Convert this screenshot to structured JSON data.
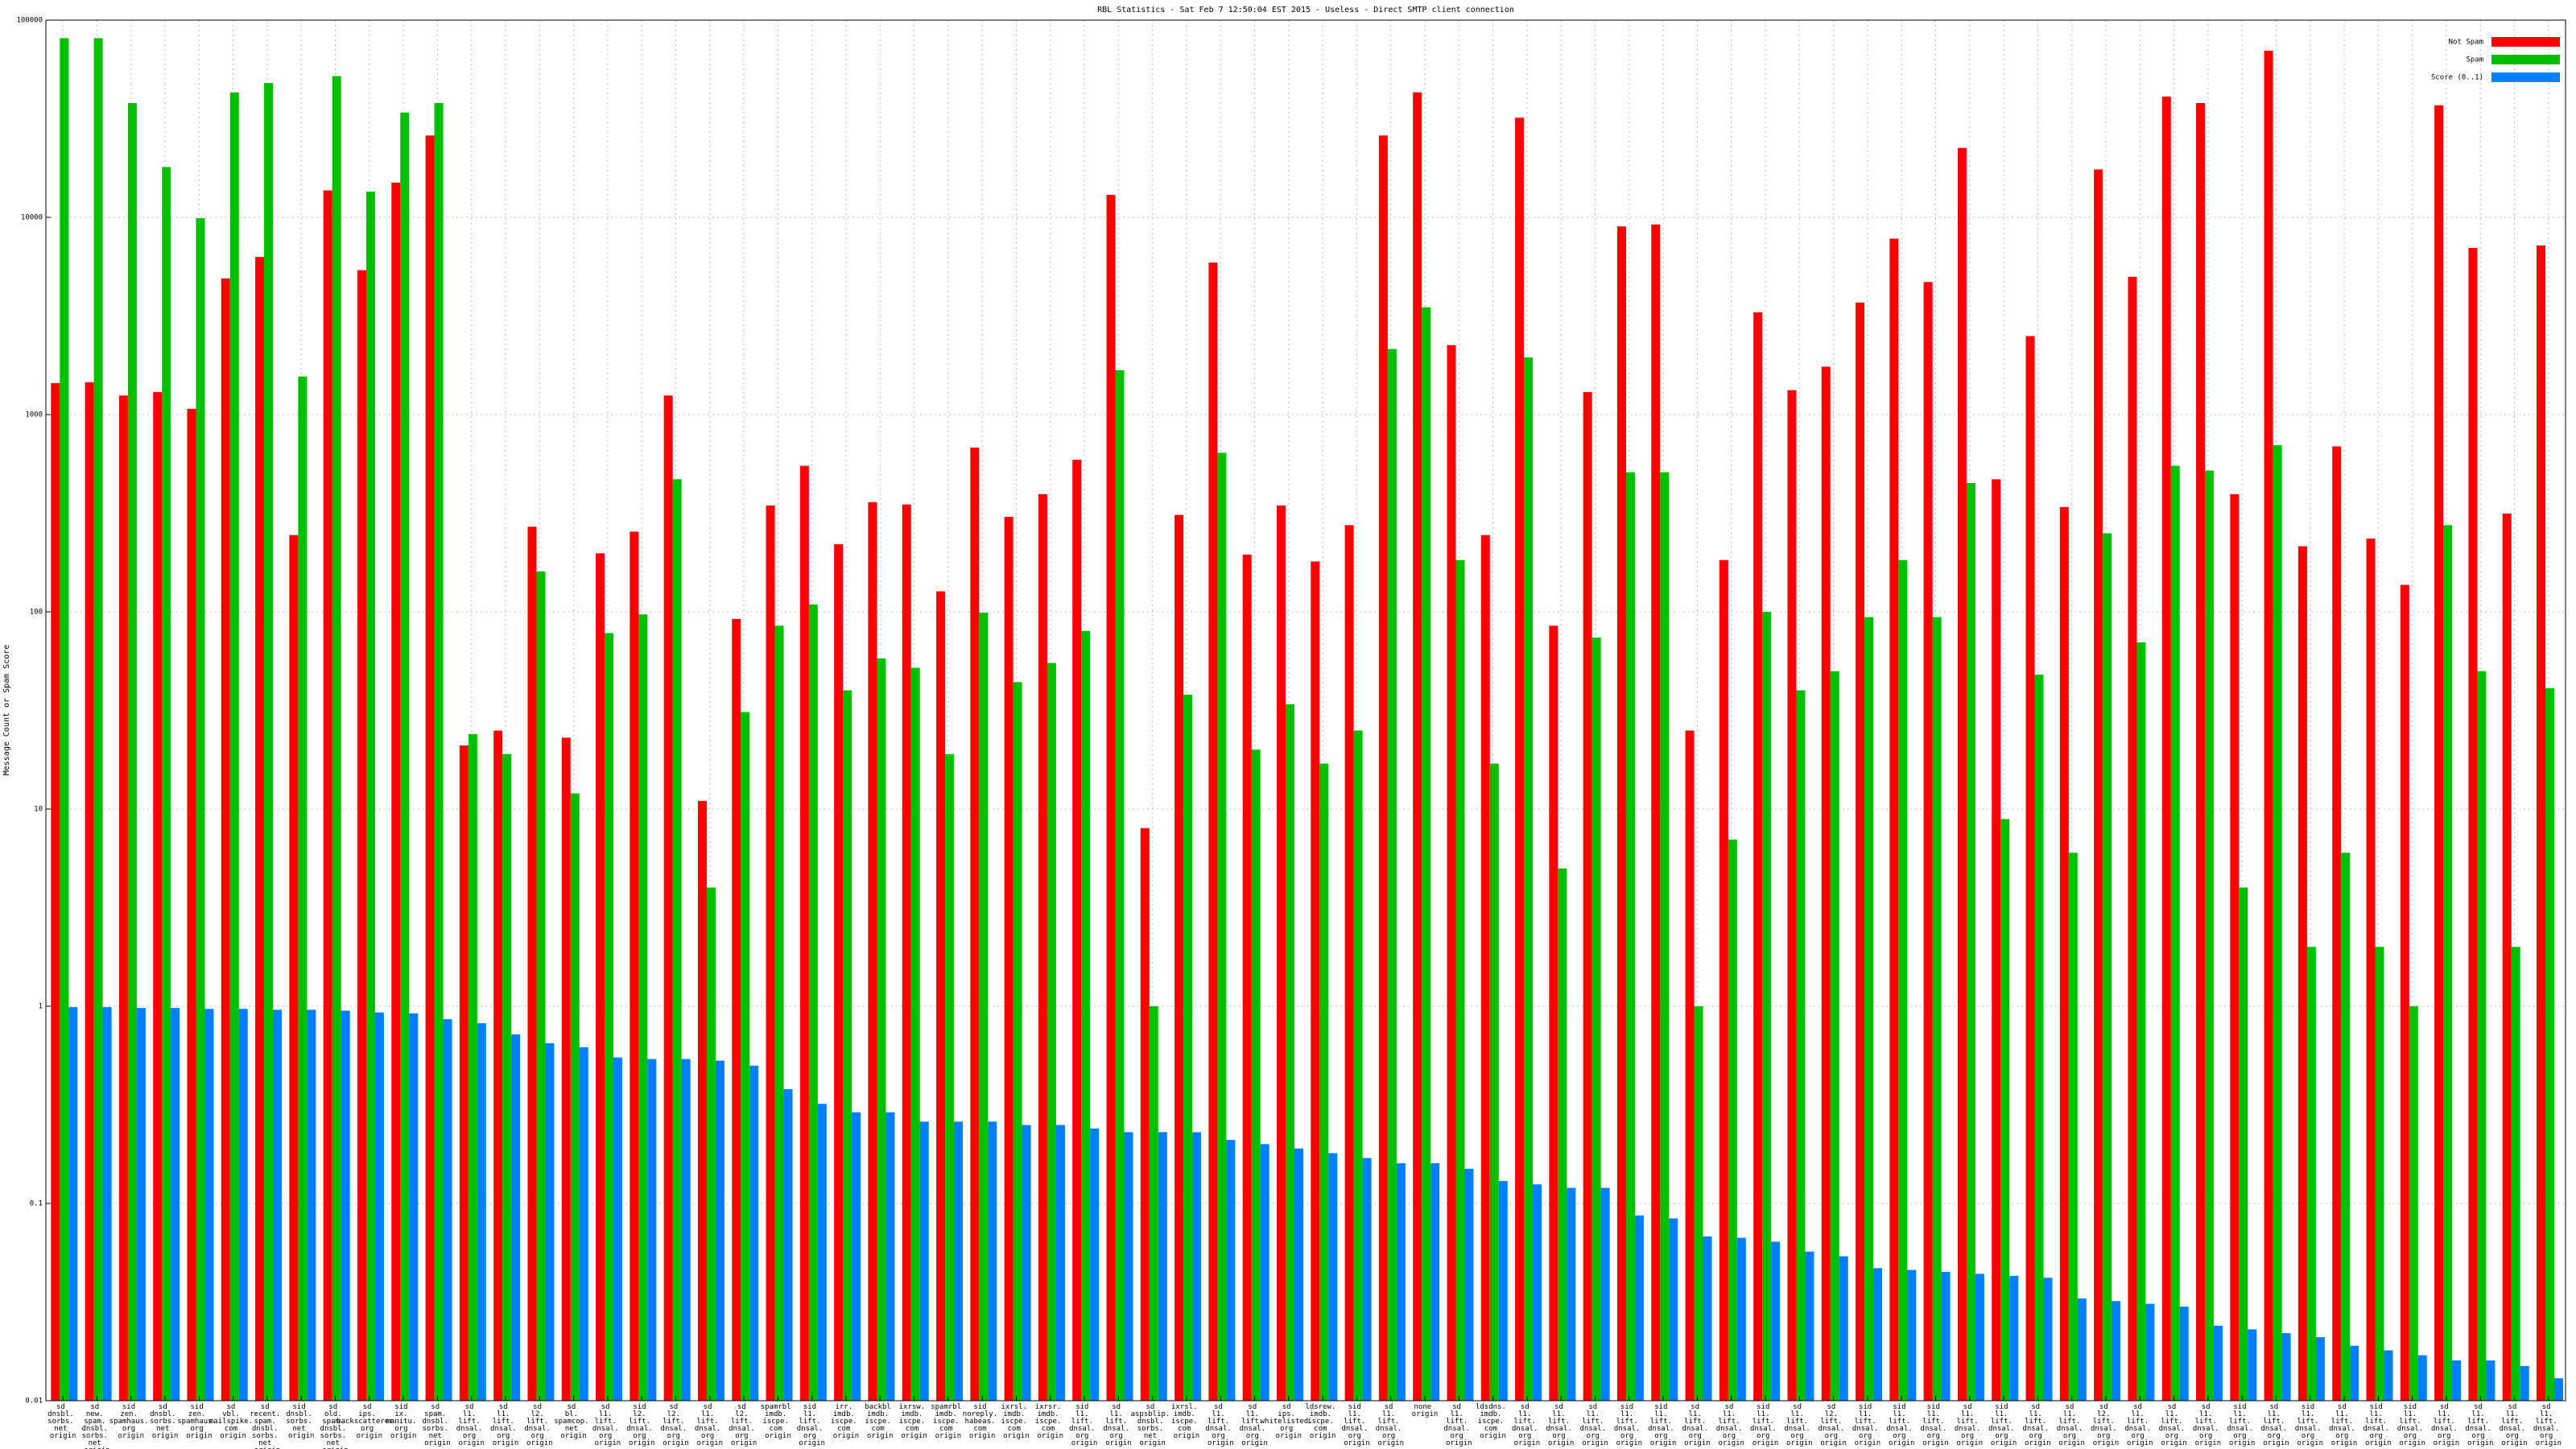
{
  "chart_data": {
    "type": "bar",
    "title": "RBL Statistics - Sat Feb  7 12:50:04 EST 2015 - Useless - Direct SMTP client connection",
    "y_label": "Message Count or Spam Score",
    "log_scale": true,
    "grid": true,
    "legend": "top-right",
    "ylim": [
      0.01,
      100000
    ],
    "yticks": [
      0.01,
      0.1,
      1,
      10,
      100,
      1000,
      10000,
      100000
    ],
    "categories": [
      "sd dnsbl. sorbs. net origin",
      "sd new. spam. dnsbl. sorbs. net origin",
      "sid zen. spamhaus. org origin",
      "sd dnsbl. sorbs. net origin",
      "sid zen. spamhaus. org origin",
      "sd vbl. mailspike. com origin",
      "sd recent. spam. dnsbl. sorbs. net origin",
      "sid dnsbl. sorbs. net origin",
      "sd old. spam. dnsbl. sorbs. net origin",
      "sd ips. backscatterer. org origin",
      "sid ix. manitu. org origin",
      "sd spam. dnsbl. sorbs. net origin",
      "sd l1. lift. dnsal. org origin",
      "sd l1. lift. dnsal. org origin",
      "sd l2. lift. dnsal. org origin",
      "sd bl. spamcop. net origin",
      "sd l1. lift. dnsal. org origin",
      "sid l2. lift. dnsal. org origin",
      "sd l2. lift. dnsal. org origin",
      "sd l1. lift. dnsal. org origin",
      "sd l2. lift. dnsal. org origin",
      "spamrbl imdb. iscpe. com origin",
      "sid l1. lift. dnsal. org origin",
      "irr. imdb. iscpe. com origin",
      "backbl imdb. iscpe. com origin",
      "ixrsw. imdb. iscpe. com origin",
      "spamrbl imdb. iscpe. com origin",
      "sid noreply. habeas. com origin",
      "ixrsl. imdb. iscpe. com origin",
      "ixrsr. imdb. iscpe. com origin",
      "sid l1. lift. dnsal. org origin",
      "sd l1. lift. dnsal. org origin",
      "sd aspsblip. dnsbl. sorbs. net origin",
      "ixrsl. imdb. iscpe. com origin",
      "sd l1. lift. dnsal. org origin",
      "sd l1. lift. dnsal. org origin",
      "sd ips. whitelisted. org origin",
      "ldsrew. imdb. iscpe. com origin",
      "sid l1. lift. dnsal. org origin",
      "sd l1. lift. dnsal. org origin",
      "none origin",
      "sd l1. lift. dnsal. org origin",
      "ldsdns. imdb. iscpe. com origin",
      "sd l1. lift. dnsal. org origin",
      "sd l1. lift. dnsal. org origin",
      "sd l1. lift. dnsal. org origin",
      "sid l1. lift. dnsal. org origin",
      "sid l1. lift. dnsal. org origin",
      "sd l1. lift. dnsal. org origin",
      "sd l1. lift. dnsal. org origin",
      "sid l1. lift. dnsal. org origin",
      "sd l1. lift. dnsal. org origin",
      "sd l2. lift. dnsal. org origin",
      "sid l1. lift. dnsal. org origin",
      "sid l1. lift. dnsal. org origin",
      "sid l1. lift. dnsal. org origin",
      "sd l1. lift. dnsal. org origin",
      "sid l1. lift. dnsal. org origin",
      "sd l1. lift. dnsal. org origin",
      "sd l1. lift. dnsal. org origin",
      "sd l2. lift. dnsal. org origin",
      "sd l1. lift. dnsal. org origin",
      "sd l1. lift. dnsal. org origin",
      "sd l1. lift. dnsal. org origin",
      "sid l1. lift. dnsal. org origin",
      "sd l1. lift. dnsal. org origin",
      "sid l1. lift. dnsal. org origin",
      "sd l1. lift. dnsal. org origin",
      "sid l1. lift. dnsal. org origin",
      "sid l1. lift. dnsal. org origin",
      "sd l1. lift. dnsal. org origin",
      "sd l1. lift. dnsal. org origin",
      "sd l1. lift. dnsal. org origin",
      "sd l1. lift. dnsal. org origin"
    ],
    "series": [
      {
        "name": "Not Spam",
        "color": "#ff0000",
        "values": [
          1445,
          1460,
          1250,
          1300,
          1070,
          4900,
          6300,
          245,
          13700,
          5400,
          15000,
          26000,
          21,
          25,
          270,
          23,
          198,
          255,
          1250,
          11,
          92,
          346,
          550,
          220,
          360,
          350,
          127,
          680,
          303,
          395,
          590,
          13000,
          8,
          310,
          5900,
          195,
          346,
          180,
          275,
          26000,
          43000,
          2250,
          245,
          32000,
          85,
          1300,
          9000,
          9200,
          25,
          183,
          3300,
          1330,
          1750,
          3700,
          7800,
          4700,
          22500,
          470,
          2500,
          340,
          17500,
          5000,
          41000,
          38000,
          395,
          70000,
          215,
          690,
          235,
          137,
          37000,
          7000,
          315,
          7200
        ]
      },
      {
        "name": "Spam",
        "color": "#00c000",
        "values": [
          81000,
          81000,
          38000,
          18000,
          9900,
          43000,
          48000,
          1560,
          52000,
          13500,
          34000,
          38000,
          24,
          19,
          160,
          12,
          78,
          97,
          470,
          4,
          31,
          85,
          109,
          40,
          58,
          52,
          19,
          99,
          44,
          55,
          80,
          1680,
          1,
          38,
          640,
          20,
          34,
          17,
          25,
          2150,
          3500,
          183,
          17,
          1950,
          5,
          74,
          510,
          510,
          1,
          7,
          100,
          40,
          50,
          94,
          183,
          94,
          450,
          8.9,
          48,
          6,
          250,
          70,
          550,
          520,
          4,
          700,
          2,
          6,
          2,
          1,
          275,
          50,
          2,
          41
        ]
      },
      {
        "name": "Score (0..1)",
        "color": "#0080ff",
        "values": [
          0.99,
          0.99,
          0.98,
          0.98,
          0.97,
          0.97,
          0.96,
          0.96,
          0.95,
          0.93,
          0.92,
          0.86,
          0.82,
          0.72,
          0.65,
          0.62,
          0.55,
          0.54,
          0.54,
          0.53,
          0.5,
          0.38,
          0.32,
          0.29,
          0.29,
          0.26,
          0.26,
          0.26,
          0.25,
          0.25,
          0.24,
          0.23,
          0.23,
          0.23,
          0.21,
          0.2,
          0.19,
          0.18,
          0.17,
          0.16,
          0.16,
          0.15,
          0.13,
          0.125,
          0.12,
          0.12,
          0.087,
          0.084,
          0.068,
          0.067,
          0.064,
          0.057,
          0.054,
          0.047,
          0.046,
          0.045,
          0.044,
          0.043,
          0.042,
          0.033,
          0.032,
          0.031,
          0.03,
          0.024,
          0.023,
          0.022,
          0.021,
          0.019,
          0.018,
          0.017,
          0.016,
          0.016,
          0.015,
          0.013
        ]
      }
    ]
  }
}
